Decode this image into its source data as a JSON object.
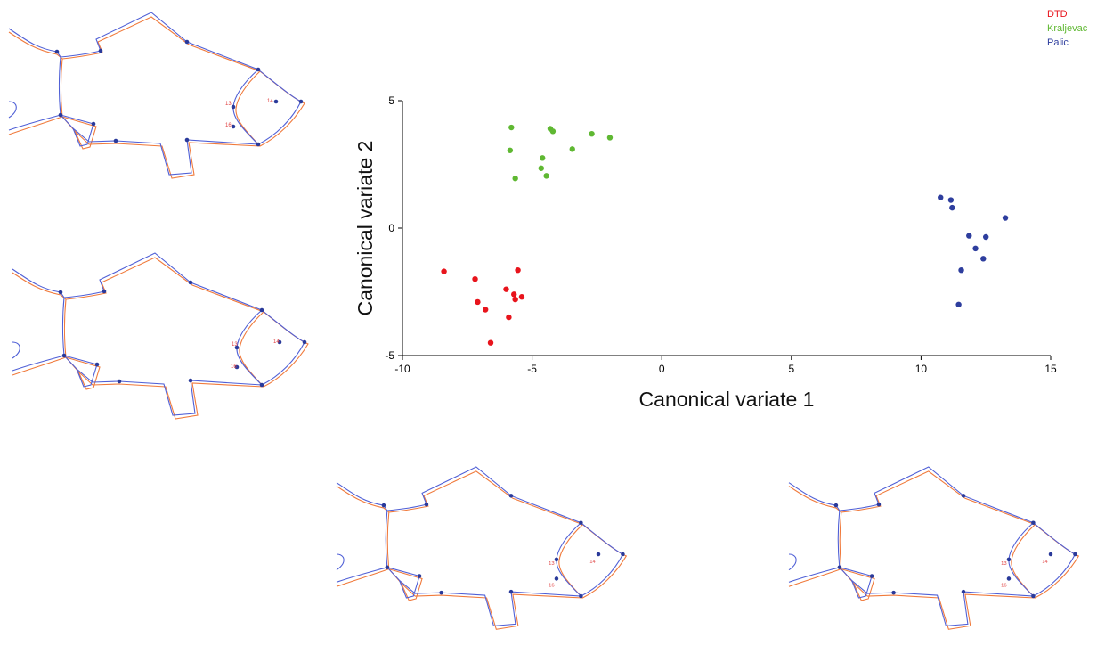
{
  "chart_data": {
    "type": "scatter",
    "title": "",
    "xlabel": "Canonical variate 1",
    "ylabel": "Canonical variate 2",
    "xlim": [
      -10,
      15
    ],
    "ylim": [
      -5,
      5
    ],
    "x_ticks": [
      -10,
      -5,
      0,
      5,
      10,
      15
    ],
    "y_ticks": [
      -5,
      0,
      5
    ],
    "grid": false,
    "legend_placement": "top-right",
    "series": [
      {
        "name": "DTD",
        "color": "#e8141c",
        "points": [
          {
            "x": -8.4,
            "y": -1.7
          },
          {
            "x": -7.2,
            "y": -2.0
          },
          {
            "x": -7.1,
            "y": -2.9
          },
          {
            "x": -6.8,
            "y": -3.2
          },
          {
            "x": -6.0,
            "y": -2.4
          },
          {
            "x": -5.9,
            "y": -3.5
          },
          {
            "x": -5.7,
            "y": -2.6
          },
          {
            "x": -5.65,
            "y": -2.8
          },
          {
            "x": -5.55,
            "y": -1.65
          },
          {
            "x": -5.4,
            "y": -2.7
          },
          {
            "x": -6.6,
            "y": -4.5
          }
        ]
      },
      {
        "name": "Kraljevac",
        "color": "#5fb832",
        "points": [
          {
            "x": -5.8,
            "y": 3.95
          },
          {
            "x": -5.85,
            "y": 3.05
          },
          {
            "x": -5.65,
            "y": 1.95
          },
          {
            "x": -4.6,
            "y": 2.75
          },
          {
            "x": -4.65,
            "y": 2.35
          },
          {
            "x": -4.45,
            "y": 2.05
          },
          {
            "x": -4.3,
            "y": 3.9
          },
          {
            "x": -4.2,
            "y": 3.8
          },
          {
            "x": -3.45,
            "y": 3.1
          },
          {
            "x": -2.7,
            "y": 3.7
          },
          {
            "x": -2.0,
            "y": 3.55
          }
        ]
      },
      {
        "name": "Palic",
        "color": "#2e3e9e",
        "points": [
          {
            "x": 10.75,
            "y": 1.2
          },
          {
            "x": 11.15,
            "y": 1.1
          },
          {
            "x": 11.2,
            "y": 0.8
          },
          {
            "x": 11.85,
            "y": -0.3
          },
          {
            "x": 12.1,
            "y": -0.8
          },
          {
            "x": 12.5,
            "y": -0.35
          },
          {
            "x": 12.4,
            "y": -1.2
          },
          {
            "x": 13.25,
            "y": 0.4
          },
          {
            "x": 11.55,
            "y": -1.65
          },
          {
            "x": 11.45,
            "y": -3.0
          }
        ]
      }
    ]
  },
  "landmark_labels": [
    "13",
    "14",
    "15",
    "16"
  ],
  "fish_colors": {
    "consensus": "#4f5fd6",
    "target": "#f07a3c"
  }
}
